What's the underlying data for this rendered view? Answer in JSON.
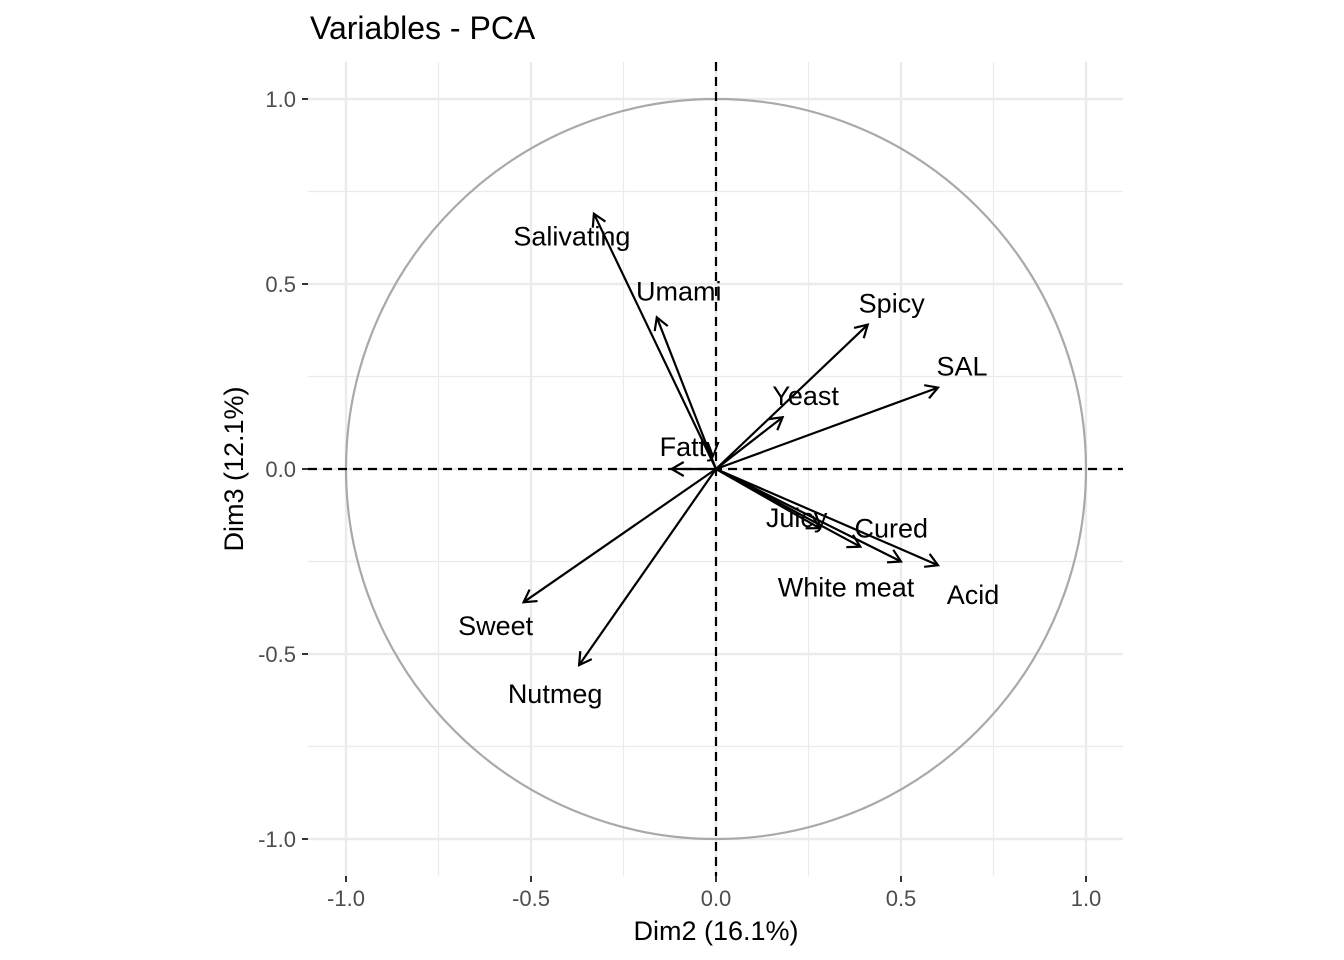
{
  "chart_data": {
    "type": "scatter",
    "subtype": "pca-variable-correlation-circle",
    "title": "Variables - PCA",
    "xlabel": "Dim2 (16.1%)",
    "ylabel": "Dim3 (12.1%)",
    "xlim": [
      -1.1,
      1.1
    ],
    "ylim": [
      -1.1,
      1.05
    ],
    "xticks": [
      -1.0,
      -0.5,
      0.0,
      0.5,
      1.0
    ],
    "xtick_labels": [
      "-1.0",
      "-0.5",
      "0.0",
      "0.5",
      "1.0"
    ],
    "yticks": [
      -1.0,
      -0.5,
      0.0,
      0.5,
      1.0
    ],
    "ytick_labels": [
      "-1.0",
      "-0.5",
      "0.0",
      "0.5",
      "1.0"
    ],
    "grid": true,
    "unit_circle": true,
    "reference_lines": "dashed lines at x=0 and y=0",
    "colors": {
      "grid": "#ebebeb",
      "circle": "#a9a9a9",
      "arrow": "#000000",
      "tick_text": "#4d4d4d"
    },
    "variables": [
      {
        "name": "Salivating",
        "x": -0.33,
        "y": 0.69
      },
      {
        "name": "Umami",
        "x": -0.16,
        "y": 0.41
      },
      {
        "name": "Spicy",
        "x": 0.41,
        "y": 0.39
      },
      {
        "name": "SAL",
        "x": 0.6,
        "y": 0.22
      },
      {
        "name": "Yeast",
        "x": 0.18,
        "y": 0.14
      },
      {
        "name": "Fatty",
        "x": -0.12,
        "y": 0.0
      },
      {
        "name": "Juicy",
        "x": 0.28,
        "y": -0.16
      },
      {
        "name": "Cured",
        "x": 0.39,
        "y": -0.21
      },
      {
        "name": "White meat",
        "x": 0.5,
        "y": -0.25
      },
      {
        "name": "Acid",
        "x": 0.6,
        "y": -0.26
      },
      {
        "name": "Sweet",
        "x": -0.52,
        "y": -0.36
      },
      {
        "name": "Nutmeg",
        "x": -0.37,
        "y": -0.53
      }
    ]
  }
}
